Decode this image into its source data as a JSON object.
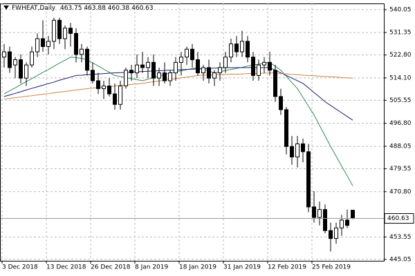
{
  "chart_data": {
    "type": "candlestick",
    "title": "FWHEAT,Daily",
    "categories": [
      "3 Dec 2018",
      null,
      null,
      null,
      null,
      null,
      null,
      null,
      "13 Dec 2018",
      null,
      null,
      null,
      null,
      null,
      null,
      null,
      "26 Dec 2018",
      null,
      null,
      null,
      null,
      null,
      null,
      null,
      "8 Jan 2019",
      null,
      null,
      null,
      null,
      null,
      null,
      null,
      "18 Jan 2019",
      null,
      null,
      null,
      null,
      null,
      null,
      null,
      "31 Jan 2019",
      null,
      null,
      null,
      null,
      null,
      null,
      null,
      "12 Feb 2019",
      null,
      null,
      null,
      null,
      null,
      null,
      null,
      "25 Feb 2019",
      null,
      null,
      null,
      null,
      null,
      null,
      null
    ],
    "open": [
      522,
      524,
      519,
      521,
      514,
      519,
      524,
      529,
      526,
      528,
      536,
      529,
      533,
      531,
      523,
      525,
      517,
      513,
      510,
      511,
      508,
      504,
      511,
      517,
      516,
      519,
      518,
      520,
      514,
      516,
      513,
      516,
      520,
      522,
      525,
      521,
      516,
      518,
      514,
      516,
      518,
      522,
      527,
      524,
      528,
      522,
      515,
      519,
      520,
      517,
      507,
      502,
      488,
      484,
      489,
      486,
      465,
      461,
      464,
      456,
      453,
      457,
      460,
      463.75
    ],
    "high": [
      527,
      526,
      522,
      523,
      520,
      526,
      531,
      536,
      530,
      537,
      537,
      534,
      535,
      533,
      527,
      526,
      520,
      516,
      513,
      514,
      512,
      513,
      518,
      519,
      523,
      524,
      522,
      523,
      518,
      520,
      517,
      522,
      524,
      526,
      527,
      524,
      519,
      521,
      517,
      520,
      524,
      529,
      530,
      532,
      530,
      524,
      521,
      522,
      524,
      519,
      510,
      503,
      492,
      492,
      491,
      489,
      471,
      467,
      466,
      459,
      459,
      462,
      464,
      463.88
    ],
    "low": [
      518,
      516,
      514,
      512,
      511,
      518,
      522,
      524,
      523,
      525,
      527,
      525,
      526,
      520,
      520,
      515,
      512,
      508,
      506,
      507,
      502,
      502,
      510,
      513,
      514,
      516,
      514,
      511,
      511,
      512,
      511,
      513,
      515,
      519,
      518,
      515,
      513,
      512,
      511,
      513,
      516,
      520,
      522,
      522,
      520,
      513,
      513,
      516,
      515,
      505,
      500,
      485,
      481,
      480,
      482,
      463,
      459,
      458,
      455,
      448,
      451,
      454,
      457,
      460.38
    ],
    "close": [
      524,
      518,
      521,
      514,
      519,
      524,
      529,
      526,
      528,
      536,
      529,
      533,
      531,
      523,
      525,
      517,
      513,
      510,
      511,
      508,
      504,
      511,
      517,
      516,
      519,
      518,
      520,
      514,
      516,
      513,
      516,
      520,
      522,
      525,
      521,
      516,
      518,
      514,
      516,
      518,
      522,
      527,
      524,
      528,
      522,
      515,
      519,
      520,
      517,
      507,
      502,
      488,
      484,
      489,
      486,
      465,
      461,
      464,
      456,
      453,
      457,
      460,
      458,
      460.63
    ],
    "series": [
      {
        "color": "#2e8b57",
        "values": [
          508,
          509.2,
          510.3,
          511.5,
          512.7,
          513.8,
          515,
          516.2,
          517.3,
          518.5,
          519.7,
          520.8,
          522,
          521.8,
          521.5,
          521,
          519.8,
          518.6,
          517.4,
          516.2,
          515,
          514.6,
          514.2,
          513.8,
          513.4,
          513,
          513.6,
          514.2,
          514.8,
          515.4,
          516,
          516.4,
          516.8,
          517.2,
          517.6,
          518,
          517.3,
          516.7,
          516,
          516.4,
          516.9,
          517.3,
          517.7,
          518.1,
          518.6,
          519,
          519.3,
          519.7,
          520,
          518.5,
          517,
          514.7,
          512.3,
          510,
          506.7,
          503.3,
          500,
          496,
          492,
          488,
          484.3,
          480.5,
          476.8,
          473
        ]
      },
      {
        "color": "#191970",
        "values": [
          507,
          507.6,
          508.2,
          508.8,
          509.5,
          510.1,
          510.7,
          511.3,
          511.9,
          512.5,
          513.2,
          513.8,
          514.4,
          515,
          515.1,
          515.3,
          515.4,
          515.6,
          515.7,
          515.9,
          516,
          516.1,
          516.2,
          516.3,
          516.4,
          516.5,
          516.6,
          516.7,
          516.8,
          516.9,
          517,
          517.1,
          517.2,
          517.3,
          517.4,
          517.5,
          517.6,
          517.7,
          517.8,
          517.9,
          518,
          518,
          518,
          518,
          518,
          518,
          518,
          518,
          518,
          517,
          516,
          515,
          514,
          513,
          512,
          510.3,
          508.5,
          506.8,
          505,
          503.6,
          502.2,
          500.8,
          499.4,
          498
        ]
      },
      {
        "color": "#cd853f",
        "values": [
          506,
          506.3,
          506.5,
          506.8,
          507.1,
          507.3,
          507.6,
          507.9,
          508.1,
          508.4,
          508.7,
          508.9,
          509.2,
          509.5,
          509.7,
          510,
          510.2,
          510.4,
          510.6,
          510.8,
          511,
          511.2,
          511.4,
          511.6,
          511.8,
          512,
          512.3,
          512.6,
          512.9,
          513.2,
          513.5,
          513.8,
          514.1,
          514.4,
          514.7,
          515,
          515.1,
          515.2,
          515.2,
          515.3,
          515.4,
          515.5,
          515.5,
          515.6,
          515.7,
          515.8,
          515.8,
          515.9,
          516,
          515.9,
          515.7,
          515.6,
          515.4,
          515.3,
          515.1,
          515,
          514.9,
          514.7,
          514.6,
          514.5,
          514.4,
          514.2,
          514.1,
          514
        ]
      }
    ],
    "ylim": [
      444.5,
      542.4
    ],
    "yticks": [
      540.05,
      531.35,
      {
        "value": 522.8,
        "label": "522.80"
      },
      {
        "value": 514.1,
        "label": "514.10"
      },
      505.55,
      {
        "value": 496.8,
        "label": "496.80"
      },
      488.05,
      479.55,
      {
        "value": 470.8,
        "label": "470.80"
      },
      453.55,
      445.05
    ],
    "grid": true,
    "up_color": "#ffffff",
    "down_color": "#000000"
  }
}
